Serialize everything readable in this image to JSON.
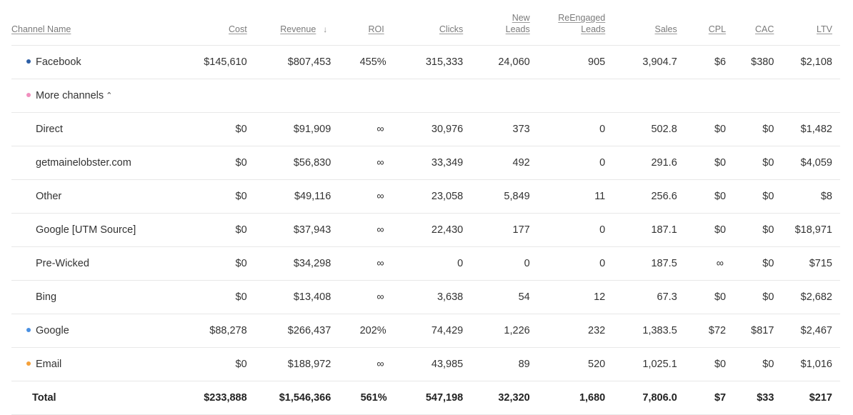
{
  "columns": {
    "channel": "Channel Name",
    "cost": "Cost",
    "revenue": "Revenue",
    "revenue_sort": "↓",
    "roi": "ROI",
    "clicks": "Clicks",
    "new_leads_1": "New",
    "new_leads_2": "Leads",
    "reengaged_1": "ReEngaged",
    "reengaged_2": "Leads",
    "sales": "Sales",
    "cpl": "CPL",
    "cac": "CAC",
    "ltv": "LTV"
  },
  "colors": {
    "facebook": "#2d5fa6",
    "more": "#f08fbe",
    "google": "#4a90e2",
    "email": "#f5a13a"
  },
  "rows": [
    {
      "name": "Facebook",
      "cost": "$145,610",
      "revenue": "$807,453",
      "roi": "455%",
      "clicks": "315,333",
      "new_leads": "24,060",
      "reengaged": "905",
      "sales": "3,904.7",
      "cpl": "$6",
      "cac": "$380",
      "ltv": "$2,108"
    },
    {
      "name": "More channels",
      "chevron": "⌃"
    },
    {
      "name": "Direct",
      "cost": "$0",
      "revenue": "$91,909",
      "roi": "∞",
      "clicks": "30,976",
      "new_leads": "373",
      "reengaged": "0",
      "sales": "502.8",
      "cpl": "$0",
      "cac": "$0",
      "ltv": "$1,482"
    },
    {
      "name": "getmainelobster.com",
      "cost": "$0",
      "revenue": "$56,830",
      "roi": "∞",
      "clicks": "33,349",
      "new_leads": "492",
      "reengaged": "0",
      "sales": "291.6",
      "cpl": "$0",
      "cac": "$0",
      "ltv": "$4,059"
    },
    {
      "name": "Other",
      "cost": "$0",
      "revenue": "$49,116",
      "roi": "∞",
      "clicks": "23,058",
      "new_leads": "5,849",
      "reengaged": "11",
      "sales": "256.6",
      "cpl": "$0",
      "cac": "$0",
      "ltv": "$8"
    },
    {
      "name": "Google [UTM Source]",
      "cost": "$0",
      "revenue": "$37,943",
      "roi": "∞",
      "clicks": "22,430",
      "new_leads": "177",
      "reengaged": "0",
      "sales": "187.1",
      "cpl": "$0",
      "cac": "$0",
      "ltv": "$18,971"
    },
    {
      "name": "Pre-Wicked",
      "cost": "$0",
      "revenue": "$34,298",
      "roi": "∞",
      "clicks": "0",
      "new_leads": "0",
      "reengaged": "0",
      "sales": "187.5",
      "cpl": "∞",
      "cac": "$0",
      "ltv": "$715"
    },
    {
      "name": "Bing",
      "cost": "$0",
      "revenue": "$13,408",
      "roi": "∞",
      "clicks": "3,638",
      "new_leads": "54",
      "reengaged": "12",
      "sales": "67.3",
      "cpl": "$0",
      "cac": "$0",
      "ltv": "$2,682"
    },
    {
      "name": "Google",
      "cost": "$88,278",
      "revenue": "$266,437",
      "roi": "202%",
      "clicks": "74,429",
      "new_leads": "1,226",
      "reengaged": "232",
      "sales": "1,383.5",
      "cpl": "$72",
      "cac": "$817",
      "ltv": "$2,467"
    },
    {
      "name": "Email",
      "cost": "$0",
      "revenue": "$188,972",
      "roi": "∞",
      "clicks": "43,985",
      "new_leads": "89",
      "reengaged": "520",
      "sales": "1,025.1",
      "cpl": "$0",
      "cac": "$0",
      "ltv": "$1,016"
    }
  ],
  "total": {
    "name": "Total",
    "cost": "$233,888",
    "revenue": "$1,546,366",
    "roi": "561%",
    "clicks": "547,198",
    "new_leads": "32,320",
    "reengaged": "1,680",
    "sales": "7,806.0",
    "cpl": "$7",
    "cac": "$33",
    "ltv": "$217"
  }
}
